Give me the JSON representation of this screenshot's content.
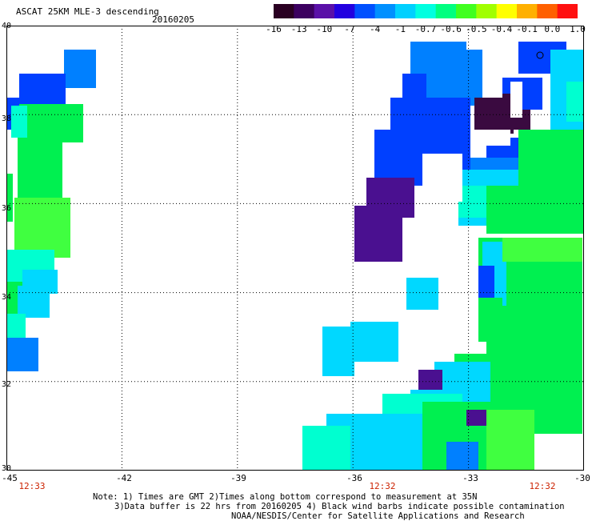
{
  "header": {
    "title": "ASCAT 25KM MLE-3 descending",
    "date": "20160205"
  },
  "colorbar": {
    "labels": [
      "-16",
      "-13",
      "-10",
      "-7",
      "-4",
      "-1",
      "-0.7",
      "-0.6",
      "-0.5",
      "-0.4",
      "-0.1",
      "0.0",
      "1.0"
    ],
    "colors": [
      "#2a0022",
      "#3c0060",
      "#5a10a8",
      "#2200e0",
      "#0050ff",
      "#0090ff",
      "#00d0ff",
      "#00ffe0",
      "#00ff80",
      "#40ff20",
      "#a0ff00",
      "#ffff00",
      "#ffb000",
      "#ff6000",
      "#ff1010"
    ]
  },
  "axes": {
    "lat_labels": [
      "40",
      "38",
      "36",
      "34",
      "32",
      "30"
    ],
    "lon_labels": [
      "-45",
      "-42",
      "-39",
      "-36",
      "-33",
      "-30"
    ],
    "lat_range": [
      30,
      40
    ],
    "lon_range": [
      -45,
      -30
    ]
  },
  "times": [
    "12:33",
    "12:32",
    "12:32"
  ],
  "notes": {
    "line1": "Note: 1) Times are GMT 2)Times along bottom correspond to measurement at 35N",
    "line2": "3)Data buffer is 22 hrs from 20160205 4) Black wind barbs indicate possible contamination",
    "line3": "NOAA/NESDIS/Center for Satellite Applications and Research"
  },
  "swath_colors": {
    "deep_purple": "#4a1090",
    "dark_purple": "#3a0a40",
    "blue": "#0040ff",
    "mid_blue": "#0080ff",
    "cyan": "#00d8ff",
    "aqua": "#00ffd0",
    "green": "#00f050",
    "light_green": "#40ff40"
  }
}
